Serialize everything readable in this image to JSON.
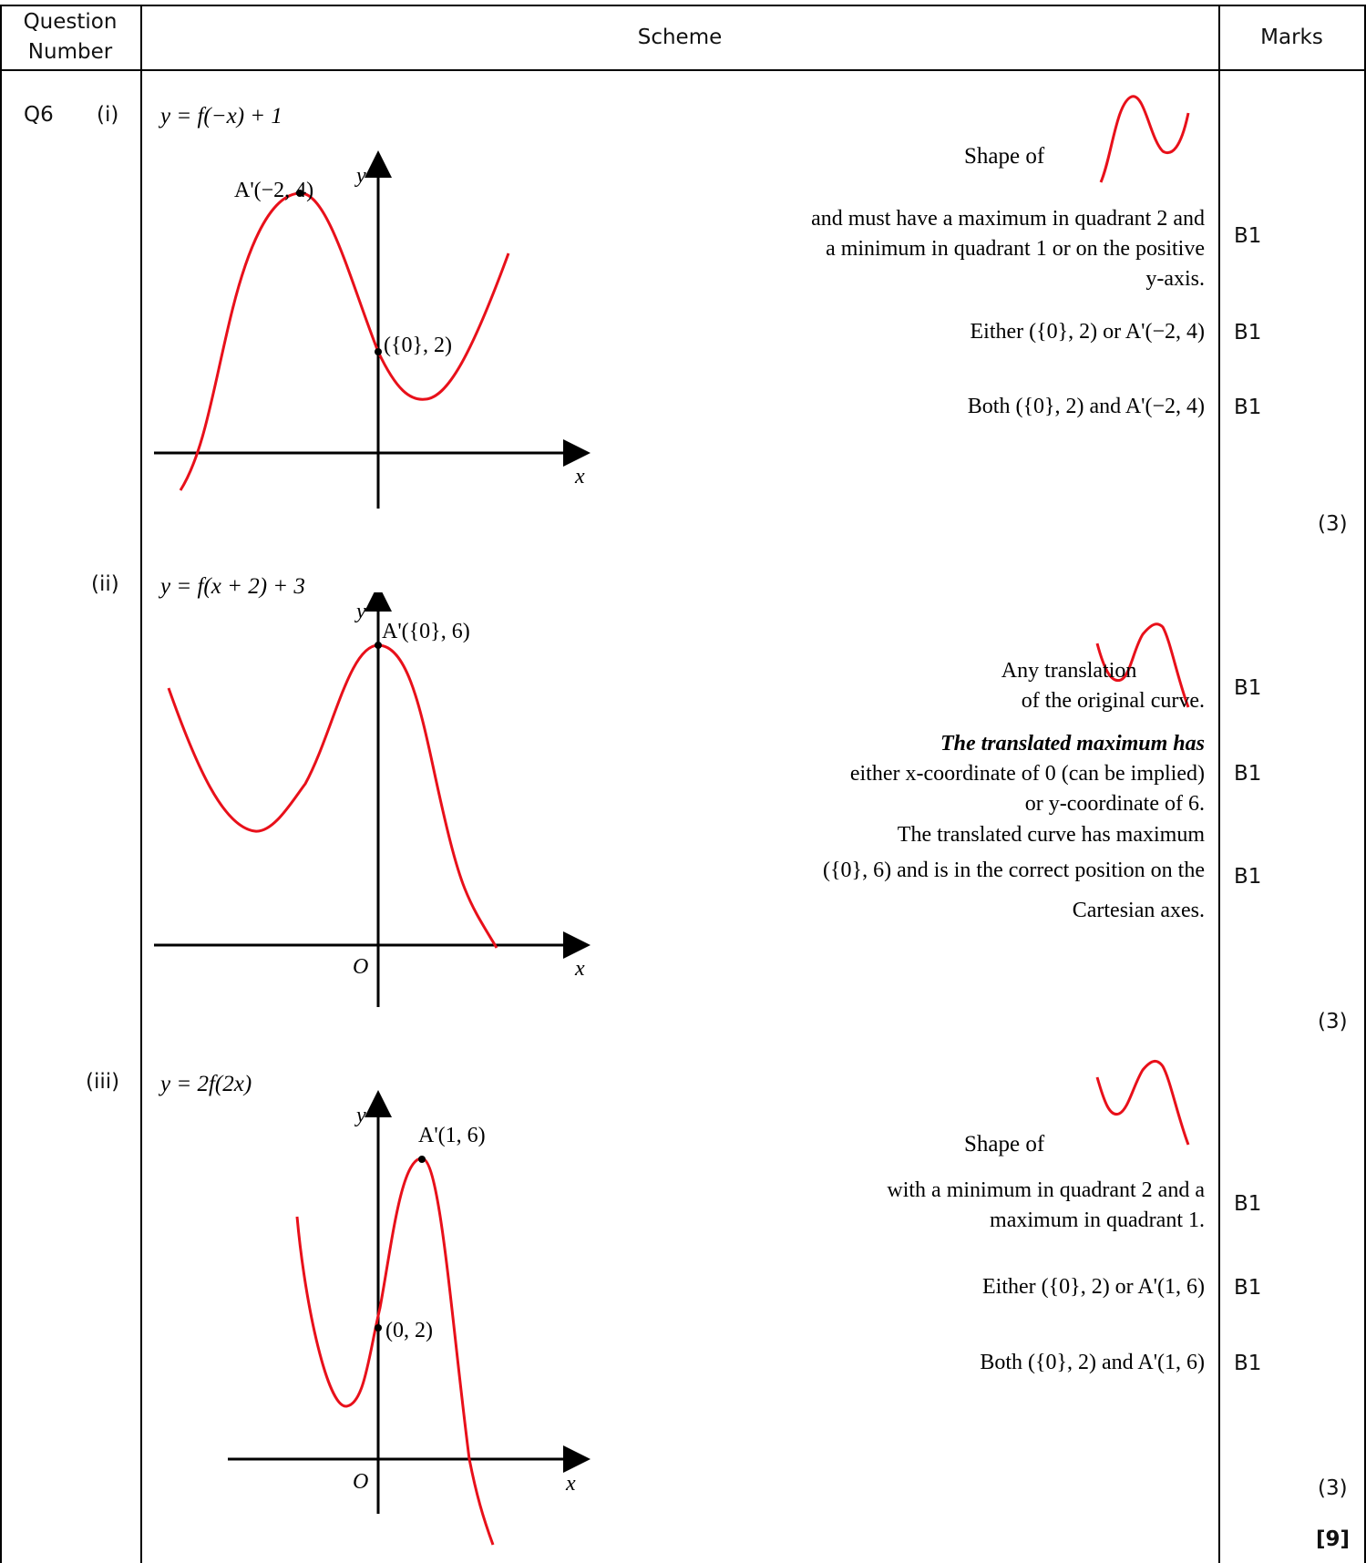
{
  "header": {
    "question_number": "Question Number",
    "scheme": "Scheme",
    "marks": "Marks"
  },
  "question": "Q6",
  "parts": [
    {
      "label": "(i)",
      "equation": "y = f(−x) + 1",
      "graph": {
        "y_label": "y",
        "x_label": "x",
        "point_max": "A'(−2, 4)",
        "point_intercept": "({0}, 2)"
      },
      "shape_label": "Shape of",
      "criteria": [
        {
          "text": [
            "and must have a maximum in quadrant 2 and",
            "a minimum in quadrant 1 or on the positive",
            "y-axis."
          ],
          "mark": "B1"
        },
        {
          "text": [
            "Either ({0}, 2) or A'(−2, 4)"
          ],
          "mark": "B1"
        },
        {
          "text": [
            "Both ({0}, 2) and A'(−2, 4)"
          ],
          "mark": "B1"
        }
      ],
      "total": "(3)"
    },
    {
      "label": "(ii)",
      "equation": "y = f(x + 2) + 3",
      "graph": {
        "y_label": "y",
        "x_label": "x",
        "origin_label": "O",
        "point_max": "A'({0}, 6)"
      },
      "criteria": [
        {
          "text": [
            "Any translation",
            "of the original curve."
          ],
          "mark": "B1"
        },
        {
          "text": [
            "The translated maximum has",
            "either x-coordinate of 0 (can be implied)",
            "or y-coordinate of 6."
          ],
          "mark": "B1"
        },
        {
          "text": [
            "The translated curve has maximum",
            "({0}, 6) and is in the correct position on the",
            "Cartesian axes."
          ],
          "mark": "B1"
        }
      ],
      "total": "(3)"
    },
    {
      "label": "(iii)",
      "equation": "y = 2f(2x)",
      "graph": {
        "y_label": "y",
        "x_label": "x",
        "origin_label": "O",
        "point_max": "A'(1, 6)",
        "point_intercept": "(0, 2)"
      },
      "shape_label": "Shape of",
      "criteria": [
        {
          "text": [
            "with a minimum in quadrant 2 and a",
            "maximum in quadrant 1."
          ],
          "mark": "B1"
        },
        {
          "text": [
            "Either ({0}, 2) or A'(1, 6)"
          ],
          "mark": "B1"
        },
        {
          "text": [
            "Both ({0}, 2) and A'(1, 6)"
          ],
          "mark": "B1"
        }
      ],
      "total": "(3)"
    }
  ],
  "grand_total": "[9]",
  "colors": {
    "curve": "#e8101a",
    "rule": "#000000"
  }
}
